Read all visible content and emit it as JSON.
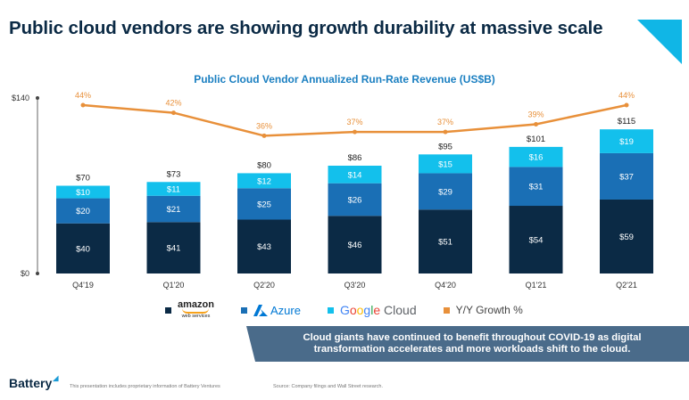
{
  "slide": {
    "title": "Public cloud vendors are showing growth durability at massive scale",
    "callout": [
      "Cloud giants have continued to benefit throughout COVID-19 as digital",
      "transformation accelerates and more workloads shift to the cloud."
    ],
    "logo": "Battery",
    "disclaimer": "This presentation includes proprietary information of Battery Ventures",
    "source": "Source: Company filings and Wall Street research."
  },
  "legend": {
    "aws": {
      "word": "amazon",
      "sub": "web services"
    },
    "azure": "Azure",
    "google": [
      "G",
      "o",
      "o",
      "g",
      "l",
      "e",
      " Cloud"
    ],
    "growth": "Y/Y Growth %"
  },
  "colors": {
    "aws": "#0b2a45",
    "azure": "#1a6fb5",
    "google": "#13c0ec",
    "growth": "#e8903a",
    "title": "#0b2a45",
    "accent": "#10b6e6",
    "google_letters": [
      "#4285f4",
      "#ea4335",
      "#fbbc05",
      "#4285f4",
      "#34a853",
      "#ea4335",
      "#5f6368"
    ]
  },
  "chart_data": {
    "type": "bar",
    "stacked": true,
    "title": "Public Cloud Vendor Annualized Run-Rate Revenue (US$B)",
    "categories": [
      "Q4'19",
      "Q1'20",
      "Q2'20",
      "Q3'20",
      "Q4'20",
      "Q1'21",
      "Q2'21"
    ],
    "series": [
      {
        "name": "amazon web services",
        "values": [
          40,
          41,
          43,
          46,
          51,
          54,
          59
        ]
      },
      {
        "name": "Azure",
        "values": [
          20,
          21,
          25,
          26,
          29,
          31,
          37
        ]
      },
      {
        "name": "Google Cloud",
        "values": [
          10,
          11,
          12,
          14,
          15,
          16,
          19
        ]
      }
    ],
    "totals": [
      "$70",
      "$73",
      "$80",
      "$86",
      "$95",
      "$101",
      "$115"
    ],
    "growth_series": {
      "name": "Y/Y Growth %",
      "values": [
        44,
        42,
        36,
        37,
        37,
        39,
        44
      ],
      "labels": [
        "44%",
        "42%",
        "36%",
        "37%",
        "37%",
        "39%",
        "44%"
      ]
    },
    "yticks": [
      "$0",
      "$140"
    ],
    "ylim": [
      0,
      140
    ]
  }
}
